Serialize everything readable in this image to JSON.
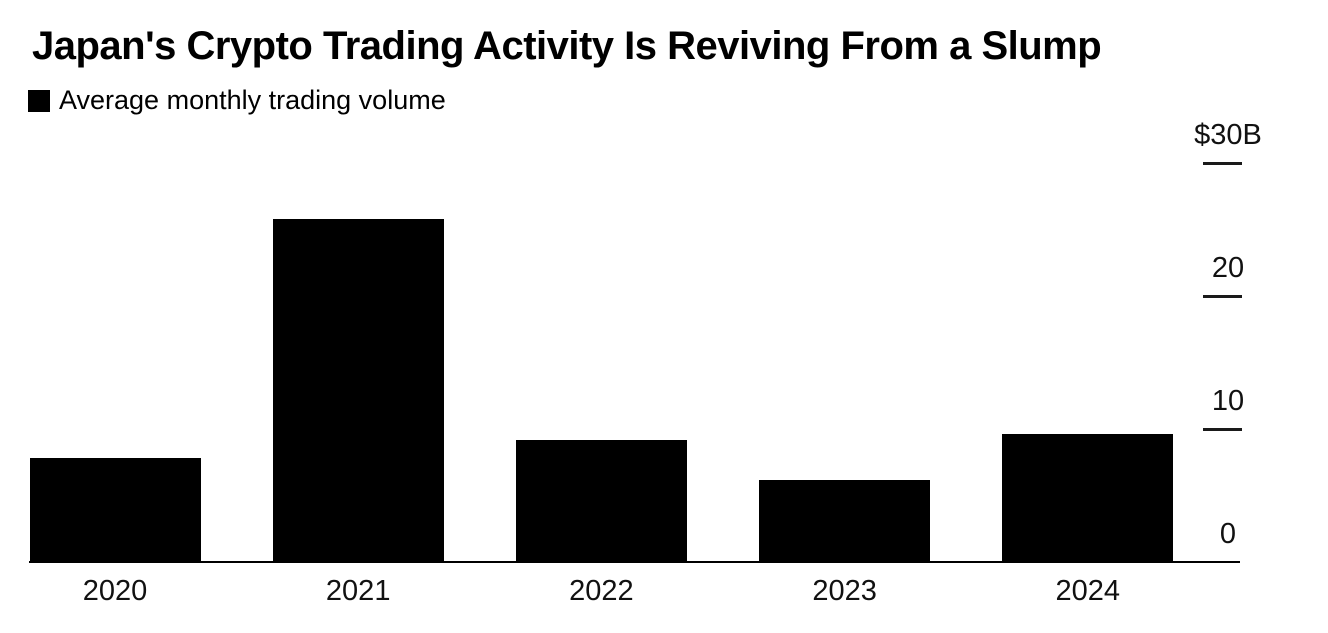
{
  "title": "Japan's Crypto Trading Activity Is Reviving From a Slump",
  "legend": {
    "label": "Average monthly trading volume",
    "swatch_color": "#000000"
  },
  "colors": {
    "bar": "#000000",
    "background": "#ffffff",
    "axis_text": "#111111"
  },
  "chart_data": {
    "type": "bar",
    "title": "Japan's Crypto Trading Activity Is Reviving From a Slump",
    "series_name": "Average monthly trading volume",
    "categories": [
      "2020",
      "2021",
      "2022",
      "2023",
      "2024"
    ],
    "values": [
      7.8,
      25.8,
      9.2,
      6.2,
      9.6
    ],
    "unit": "$B",
    "ylim": [
      0,
      30
    ],
    "grid": false,
    "legend_position": "top-left",
    "y_axis": {
      "side": "right",
      "ticks": [
        30,
        20,
        10,
        0
      ],
      "tick_labels": [
        "$30B",
        "20",
        "10",
        "0"
      ]
    }
  }
}
